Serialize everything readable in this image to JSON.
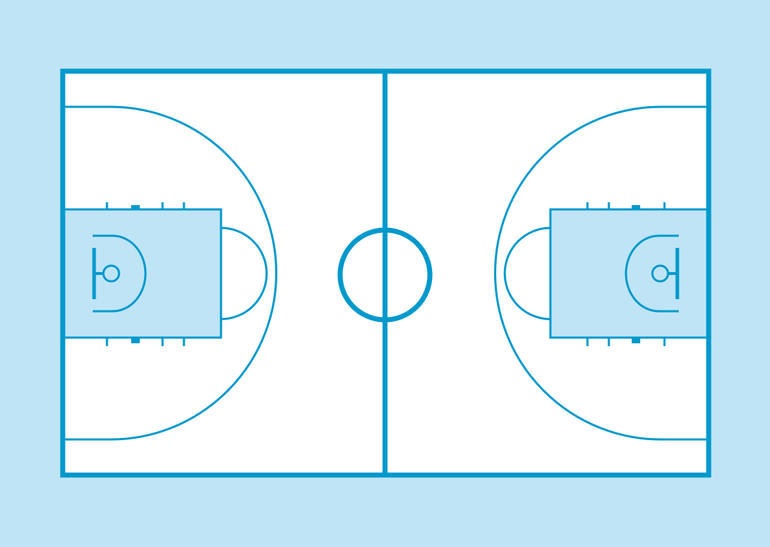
{
  "colors": {
    "background": "#bfe4f6",
    "court_floor": "#ffffff",
    "line": "#0099cc",
    "paint": "#bfe4f6"
  },
  "elements": {
    "court": "basketball-court-full",
    "halves": [
      "left",
      "right"
    ],
    "features": [
      "boundary-line",
      "half-court-line",
      "center-circle",
      "three-point-arc",
      "free-throw-lane",
      "free-throw-semicircle",
      "restricted-area",
      "backboard",
      "hoop",
      "lane-hash-marks"
    ]
  }
}
